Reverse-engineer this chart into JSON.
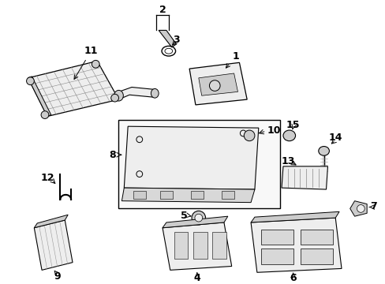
{
  "background_color": "#ffffff",
  "line_color": "#000000",
  "gray_fill": "#d8d8d8",
  "light_fill": "#eeeeee",
  "mid_fill": "#cccccc",
  "dark_fill": "#999999"
}
